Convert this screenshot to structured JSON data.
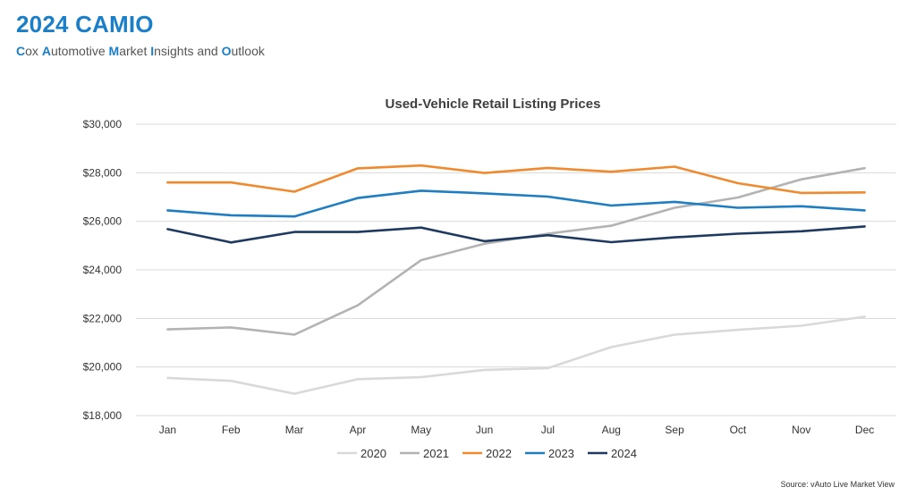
{
  "header": {
    "title": "2024 CAMIO",
    "subtitle_parts": [
      {
        "initial": "C",
        "rest": "ox "
      },
      {
        "initial": "A",
        "rest": "utomotive "
      },
      {
        "initial": "M",
        "rest": "arket "
      },
      {
        "initial": "I",
        "rest": "nsights and "
      },
      {
        "initial": "O",
        "rest": "utlook"
      }
    ]
  },
  "source": "Source: vAuto Live Market View",
  "colors": {
    "brand": "#1a7fc8",
    "grid": "#d9d9d9",
    "axis_text": "#333333"
  },
  "chart_data": {
    "type": "line",
    "title": "Used-Vehicle Retail Listing Prices",
    "xlabel": "",
    "ylabel": "",
    "categories": [
      "Jan",
      "Feb",
      "Mar",
      "Apr",
      "May",
      "Jun",
      "Jul",
      "Aug",
      "Sep",
      "Oct",
      "Nov",
      "Dec"
    ],
    "ylim": [
      18000,
      30000
    ],
    "yticks": [
      18000,
      20000,
      22000,
      24000,
      26000,
      28000,
      30000
    ],
    "ytick_labels": [
      "$18,000",
      "$20,000",
      "$22,000",
      "$24,000",
      "$26,000",
      "$28,000",
      "$30,000"
    ],
    "grid": true,
    "legend_position": "bottom",
    "series": [
      {
        "name": "2020",
        "color": "#d9d9d9",
        "values": [
          19550,
          19430,
          18900,
          19500,
          19580,
          19880,
          19950,
          20820,
          21330,
          21530,
          21700,
          22070
        ]
      },
      {
        "name": "2021",
        "color": "#b3b3b3",
        "values": [
          21550,
          21630,
          21330,
          22540,
          24400,
          25080,
          25490,
          25820,
          26560,
          26980,
          27730,
          28190
        ]
      },
      {
        "name": "2022",
        "color": "#ef8a2f",
        "values": [
          27600,
          27600,
          27220,
          28180,
          28300,
          27990,
          28200,
          28040,
          28250,
          27570,
          27170,
          27190
        ]
      },
      {
        "name": "2023",
        "color": "#1f7ec2",
        "values": [
          26450,
          26250,
          26200,
          26960,
          27260,
          27150,
          27020,
          26650,
          26800,
          26560,
          26620,
          26450
        ]
      },
      {
        "name": "2024",
        "color": "#1f3a60",
        "values": [
          25680,
          25130,
          25560,
          25560,
          25740,
          25180,
          25430,
          25140,
          25340,
          25490,
          25590,
          25790
        ]
      }
    ]
  }
}
